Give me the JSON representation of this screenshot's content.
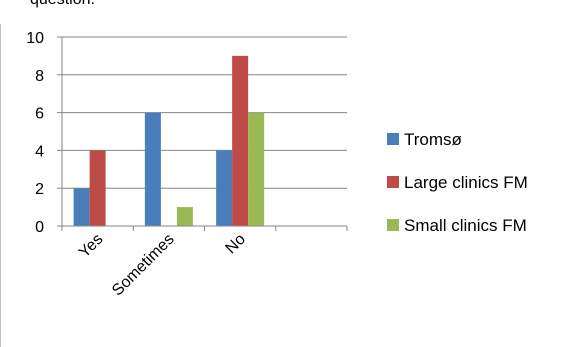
{
  "header_fragment": "question:",
  "chart_data": {
    "type": "bar",
    "title": "",
    "xlabel": "",
    "ylabel": "",
    "ylim": [
      0,
      10
    ],
    "yticks": [
      0,
      2,
      4,
      6,
      8,
      10
    ],
    "categories": [
      "Yes",
      "Sometimes",
      "No",
      ""
    ],
    "series": [
      {
        "name": "Tromsø",
        "color": "#4a7ebb",
        "values": [
          2,
          6,
          4,
          0
        ]
      },
      {
        "name": "Large clinics FM",
        "color": "#be4b48",
        "values": [
          4,
          0,
          9,
          0
        ]
      },
      {
        "name": "Small clinics FM",
        "color": "#98b954",
        "values": [
          0,
          1,
          6,
          0
        ]
      }
    ],
    "grid": true,
    "legend": "right"
  }
}
